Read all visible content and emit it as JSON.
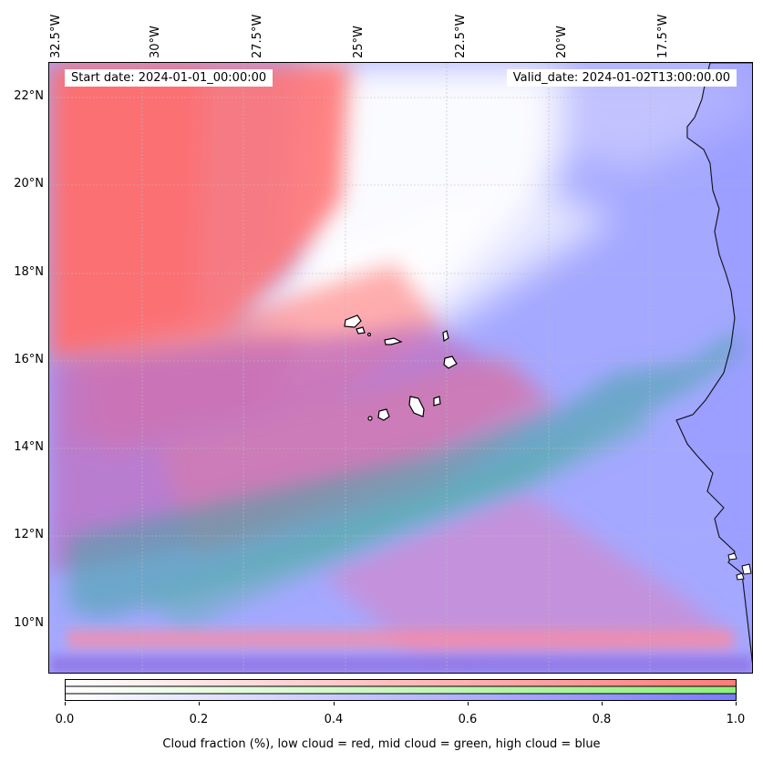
{
  "header": {
    "start_date": "Start date: 2024-01-01_00:00:00",
    "valid_date": "Valid_date: 2024-01-02T13:00:00.00"
  },
  "axes": {
    "lon_labels": [
      "32.5°W",
      "30°W",
      "27.5°W",
      "25°W",
      "22.5°W",
      "20°W",
      "17.5°W"
    ],
    "lat_labels": [
      "22°N",
      "20°N",
      "18°N",
      "16°N",
      "14°N",
      "12°N",
      "10°N"
    ]
  },
  "colorbar": {
    "ticks": [
      "0.0",
      "0.2",
      "0.4",
      "0.6",
      "0.8",
      "1.0"
    ],
    "label": "Cloud fraction (%), low cloud = red, mid cloud = green, high cloud = blue",
    "low_color": "#ff7a7a",
    "mid_color": "#8ef07a",
    "high_color": "#7a7aff"
  },
  "colors": {
    "land": "#ffffff",
    "coastline": "#000000",
    "grid": "#bbbbbb"
  }
}
